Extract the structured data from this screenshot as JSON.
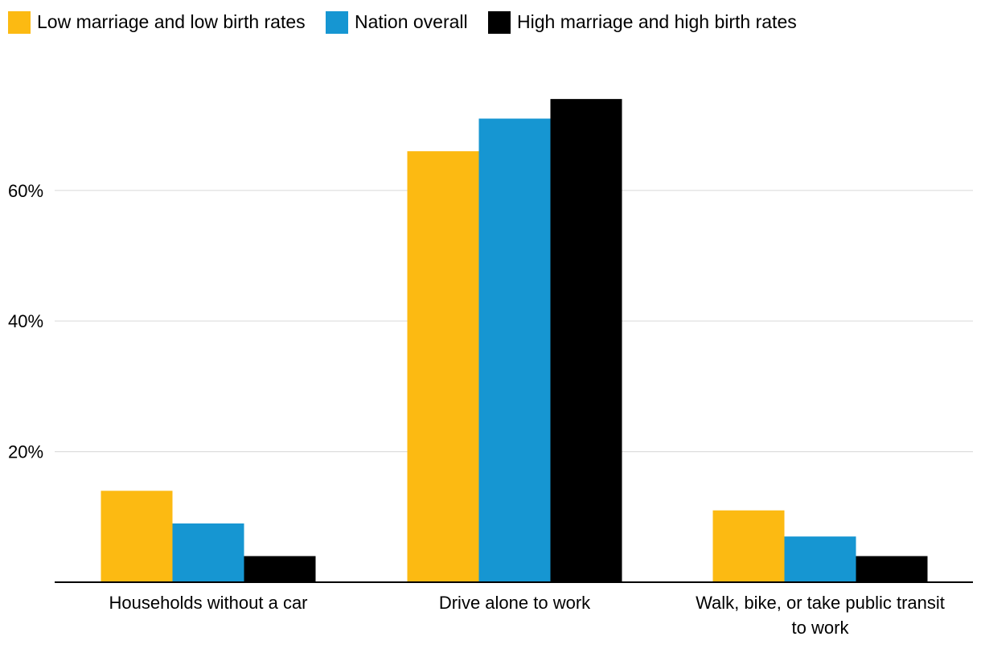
{
  "chart_data": {
    "type": "bar",
    "title": "",
    "xlabel": "",
    "ylabel": "",
    "ylim": [
      0,
      75
    ],
    "yticks": [
      20,
      40,
      60
    ],
    "ytick_labels": [
      "20%",
      "40%",
      "60%"
    ],
    "grid": true,
    "legend_position": "top-left",
    "categories": [
      [
        "Households without a car"
      ],
      [
        "Drive alone to work"
      ],
      [
        "Walk, bike, or take public transit",
        "to work"
      ]
    ],
    "series": [
      {
        "name": "Low marriage and low birth rates",
        "color": "#FCBA12",
        "values": [
          14,
          66,
          11
        ]
      },
      {
        "name": "Nation overall",
        "color": "#1696D2",
        "values": [
          9,
          71,
          7
        ]
      },
      {
        "name": "High marriage and high birth rates",
        "color": "#000000",
        "values": [
          4,
          74,
          4
        ]
      }
    ]
  },
  "colors": {
    "grid": "#DEDDDD",
    "axis": "#000000",
    "text": "#000000"
  }
}
